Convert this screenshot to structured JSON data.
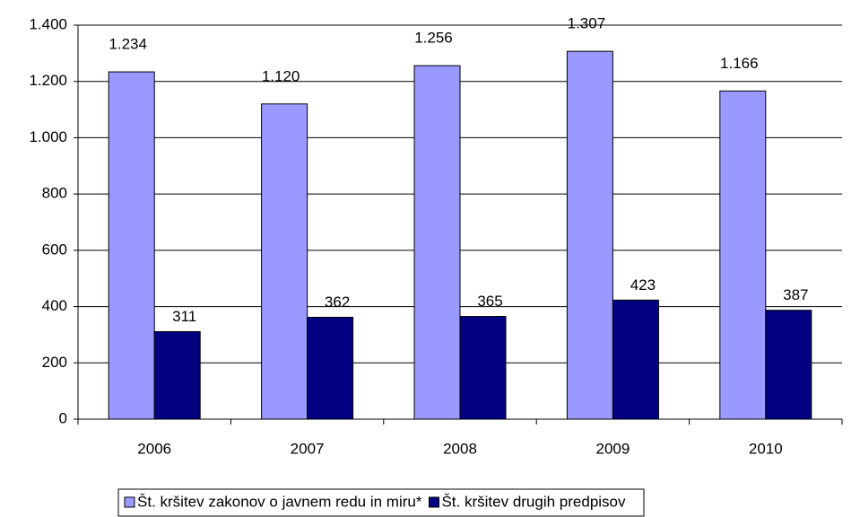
{
  "chart_data": {
    "type": "bar",
    "categories": [
      "2006",
      "2007",
      "2008",
      "2009",
      "2010"
    ],
    "series": [
      {
        "name": "Št. kršitev zakonov o javnem redu in miru*",
        "color": "#9999ff",
        "values": [
          1234,
          1120,
          1256,
          1307,
          1166
        ],
        "value_labels": [
          "1.234",
          "1.120",
          "1.256",
          "1.307",
          "1.166"
        ]
      },
      {
        "name": "Št. kršitev drugih predpisov",
        "color": "#000080",
        "values": [
          311,
          362,
          365,
          423,
          387
        ]
      }
    ],
    "ylim": [
      0,
      1400
    ],
    "yticks": [
      0,
      200,
      400,
      600,
      800,
      {
        "value": 1000,
        "label": "1.000"
      },
      {
        "value": 1200,
        "label": "1.200"
      },
      {
        "value": 1400,
        "label": "1.400"
      }
    ],
    "grid": true,
    "legend": "bottom"
  }
}
